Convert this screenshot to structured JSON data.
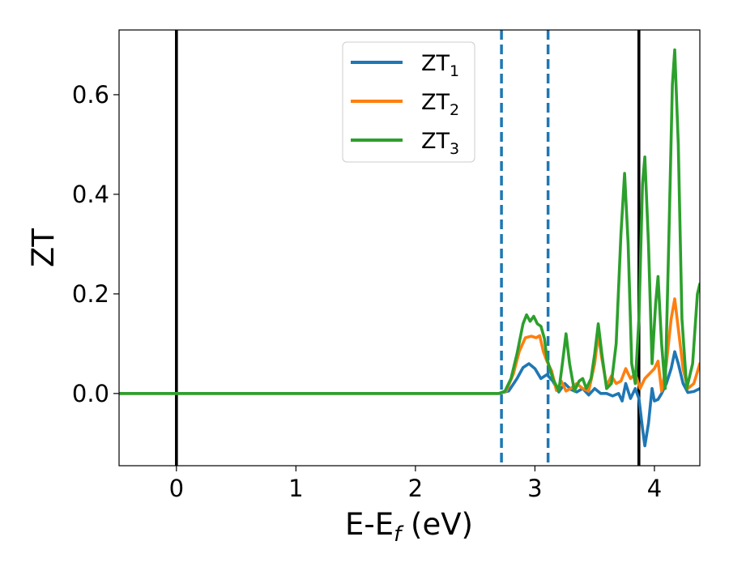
{
  "chart_data": {
    "type": "line",
    "xlabel": "E-E",
    "xlabel_sub": "f",
    "xlabel_unit": " (eV)",
    "ylabel": "ZT",
    "xlim": [
      -0.48,
      4.38
    ],
    "ylim": [
      -0.145,
      0.73
    ],
    "xticks": [
      0,
      1,
      2,
      3,
      4
    ],
    "xtick_labels": [
      "0",
      "1",
      "2",
      "3",
      "4"
    ],
    "yticks": [
      0.0,
      0.2,
      0.4,
      0.6
    ],
    "ytick_labels": [
      "0.0",
      "0.2",
      "0.4",
      "0.6"
    ],
    "grid": false,
    "legend_position": "top-center",
    "vlines": [
      {
        "x": 0.0,
        "style": "solid",
        "color": "#000000"
      },
      {
        "x": 3.87,
        "style": "solid",
        "color": "#000000"
      },
      {
        "x": 2.72,
        "style": "dashed",
        "color": "#1f77b4"
      },
      {
        "x": 3.11,
        "style": "dashed",
        "color": "#1f77b4"
      }
    ],
    "series": [
      {
        "name": "ZT",
        "sub": "1",
        "color": "#1f77b4",
        "points": [
          [
            -0.48,
            0
          ],
          [
            2.7,
            0
          ],
          [
            2.78,
            0.005
          ],
          [
            2.85,
            0.03
          ],
          [
            2.9,
            0.052
          ],
          [
            2.95,
            0.06
          ],
          [
            3.0,
            0.05
          ],
          [
            3.05,
            0.03
          ],
          [
            3.1,
            0.038
          ],
          [
            3.15,
            0.025
          ],
          [
            3.2,
            0.003
          ],
          [
            3.25,
            0.02
          ],
          [
            3.3,
            0.008
          ],
          [
            3.35,
            0.003
          ],
          [
            3.4,
            0.01
          ],
          [
            3.45,
            -0.003
          ],
          [
            3.5,
            0.01
          ],
          [
            3.55,
            0.0
          ],
          [
            3.6,
            0.0
          ],
          [
            3.65,
            -0.005
          ],
          [
            3.7,
            0.0
          ],
          [
            3.73,
            -0.015
          ],
          [
            3.76,
            0.02
          ],
          [
            3.8,
            -0.01
          ],
          [
            3.84,
            0.01
          ],
          [
            3.87,
            -0.01
          ],
          [
            3.9,
            -0.07
          ],
          [
            3.92,
            -0.105
          ],
          [
            3.95,
            -0.06
          ],
          [
            3.98,
            0.01
          ],
          [
            4.0,
            -0.015
          ],
          [
            4.03,
            -0.012
          ],
          [
            4.06,
            0.0
          ],
          [
            4.1,
            0.02
          ],
          [
            4.14,
            0.05
          ],
          [
            4.17,
            0.084
          ],
          [
            4.2,
            0.06
          ],
          [
            4.24,
            0.02
          ],
          [
            4.28,
            0.002
          ],
          [
            4.33,
            0.004
          ],
          [
            4.38,
            0.01
          ]
        ]
      },
      {
        "name": "ZT",
        "sub": "2",
        "color": "#ff7f0e",
        "points": [
          [
            -0.48,
            0
          ],
          [
            2.7,
            0
          ],
          [
            2.76,
            0.005
          ],
          [
            2.82,
            0.04
          ],
          [
            2.87,
            0.085
          ],
          [
            2.92,
            0.112
          ],
          [
            2.97,
            0.115
          ],
          [
            3.01,
            0.112
          ],
          [
            3.04,
            0.116
          ],
          [
            3.07,
            0.085
          ],
          [
            3.1,
            0.065
          ],
          [
            3.14,
            0.045
          ],
          [
            3.18,
            0.006
          ],
          [
            3.22,
            0.025
          ],
          [
            3.26,
            0.005
          ],
          [
            3.3,
            0.01
          ],
          [
            3.35,
            0.02
          ],
          [
            3.4,
            0.01
          ],
          [
            3.45,
            0.005
          ],
          [
            3.5,
            0.06
          ],
          [
            3.53,
            0.12
          ],
          [
            3.56,
            0.07
          ],
          [
            3.6,
            0.015
          ],
          [
            3.64,
            0.035
          ],
          [
            3.68,
            0.02
          ],
          [
            3.72,
            0.025
          ],
          [
            3.76,
            0.05
          ],
          [
            3.8,
            0.03
          ],
          [
            3.84,
            0.04
          ],
          [
            3.88,
            0.01
          ],
          [
            3.92,
            0.03
          ],
          [
            3.96,
            0.04
          ],
          [
            4.0,
            0.05
          ],
          [
            4.03,
            0.065
          ],
          [
            4.06,
            0.005
          ],
          [
            4.1,
            0.06
          ],
          [
            4.14,
            0.15
          ],
          [
            4.17,
            0.19
          ],
          [
            4.2,
            0.13
          ],
          [
            4.24,
            0.05
          ],
          [
            4.28,
            0.01
          ],
          [
            4.33,
            0.02
          ],
          [
            4.38,
            0.06
          ]
        ]
      },
      {
        "name": "ZT",
        "sub": "3",
        "color": "#2ca02c",
        "points": [
          [
            -0.48,
            0
          ],
          [
            2.7,
            0
          ],
          [
            2.75,
            0.005
          ],
          [
            2.8,
            0.03
          ],
          [
            2.85,
            0.08
          ],
          [
            2.9,
            0.14
          ],
          [
            2.93,
            0.158
          ],
          [
            2.96,
            0.145
          ],
          [
            2.99,
            0.155
          ],
          [
            3.02,
            0.14
          ],
          [
            3.05,
            0.135
          ],
          [
            3.08,
            0.11
          ],
          [
            3.1,
            0.07
          ],
          [
            3.15,
            0.03
          ],
          [
            3.2,
            0.005
          ],
          [
            3.23,
            0.06
          ],
          [
            3.26,
            0.12
          ],
          [
            3.29,
            0.06
          ],
          [
            3.33,
            0.005
          ],
          [
            3.37,
            0.025
          ],
          [
            3.4,
            0.03
          ],
          [
            3.43,
            0.01
          ],
          [
            3.47,
            0.03
          ],
          [
            3.5,
            0.08
          ],
          [
            3.53,
            0.14
          ],
          [
            3.56,
            0.08
          ],
          [
            3.6,
            0.01
          ],
          [
            3.64,
            0.02
          ],
          [
            3.68,
            0.1
          ],
          [
            3.72,
            0.32
          ],
          [
            3.75,
            0.442
          ],
          [
            3.78,
            0.3
          ],
          [
            3.81,
            0.06
          ],
          [
            3.84,
            0.02
          ],
          [
            3.87,
            0.15
          ],
          [
            3.9,
            0.42
          ],
          [
            3.92,
            0.475
          ],
          [
            3.95,
            0.3
          ],
          [
            3.98,
            0.06
          ],
          [
            4.01,
            0.18
          ],
          [
            4.03,
            0.235
          ],
          [
            4.06,
            0.1
          ],
          [
            4.09,
            0.01
          ],
          [
            4.12,
            0.3
          ],
          [
            4.15,
            0.62
          ],
          [
            4.17,
            0.69
          ],
          [
            4.2,
            0.5
          ],
          [
            4.23,
            0.15
          ],
          [
            4.27,
            0.01
          ],
          [
            4.32,
            0.06
          ],
          [
            4.36,
            0.2
          ],
          [
            4.38,
            0.22
          ]
        ]
      }
    ]
  }
}
